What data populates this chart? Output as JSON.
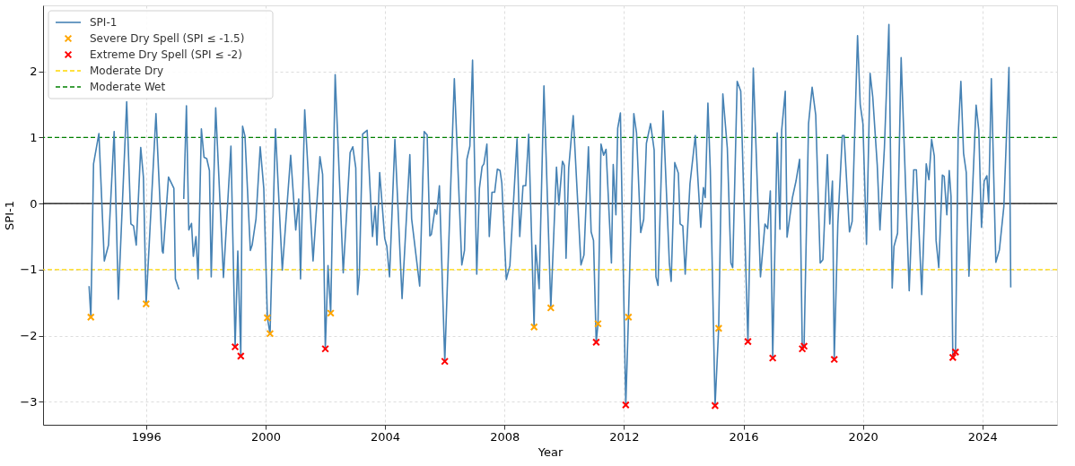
{
  "chart_data": {
    "type": "line",
    "xlabel": "Year",
    "ylabel": "SPI-1",
    "xlim": [
      1992.55,
      2026.5
    ],
    "xticks": [
      1996,
      2000,
      2004,
      2008,
      2012,
      2016,
      2020,
      2024
    ],
    "ylim": [
      -3.35,
      3.0
    ],
    "yticks": [
      -3,
      -2,
      -1,
      0,
      1,
      2
    ],
    "grid": true,
    "legend": "top left",
    "line_style": "solid",
    "series": [
      {
        "name": "SPI-1",
        "color": "#4682b4",
        "marker": "none",
        "x": [
          1994.09,
          1994.15,
          1994.24,
          1994.42,
          1994.6,
          1994.74,
          1994.93,
          1995.07,
          1995.35,
          1995.49,
          1995.58,
          1995.67,
          1995.82,
          1995.91,
          1996.0,
          1996.33,
          1996.54,
          1996.57,
          1996.75,
          1996.93,
          1996.98,
          1997.1,
          1997.17,
          1997.26,
          1997.35,
          1997.43,
          1997.52,
          1997.58,
          1997.67,
          1997.74,
          1997.85,
          1997.94,
          1998.03,
          1998.12,
          1998.18,
          1998.33,
          1998.59,
          1998.84,
          1998.98,
          1999.07,
          1999.17,
          1999.23,
          1999.31,
          1999.49,
          1999.55,
          1999.68,
          1999.82,
          1999.94,
          2000.06,
          2000.15,
          2000.33,
          2000.56,
          2000.84,
          2001.01,
          2001.11,
          2001.17,
          2001.31,
          2001.59,
          2001.82,
          2001.91,
          2002.0,
          2002.09,
          2002.18,
          2002.33,
          2002.6,
          2002.83,
          2002.92,
          2003.02,
          2003.08,
          2003.14,
          2003.25,
          2003.4,
          2003.58,
          2003.67,
          2003.73,
          2003.82,
          2003.99,
          2004.06,
          2004.15,
          2004.33,
          2004.57,
          2004.83,
          2004.89,
          2005.16,
          2005.31,
          2005.41,
          2005.5,
          2005.55,
          2005.67,
          2005.73,
          2005.82,
          2006.0,
          2006.32,
          2006.57,
          2006.66,
          2006.74,
          2006.84,
          2006.93,
          2007.07,
          2007.16,
          2007.25,
          2007.31,
          2007.41,
          2007.49,
          2007.58,
          2007.67,
          2007.76,
          2007.85,
          2007.91,
          2008.06,
          2008.18,
          2008.42,
          2008.51,
          2008.62,
          2008.71,
          2008.81,
          2008.99,
          2009.04,
          2009.16,
          2009.32,
          2009.55,
          2009.74,
          2009.82,
          2009.94,
          2010.0,
          2010.06,
          2010.15,
          2010.3,
          2010.56,
          2010.66,
          2010.81,
          2010.9,
          2010.98,
          2011.07,
          2011.13,
          2011.23,
          2011.32,
          2011.4,
          2011.58,
          2011.64,
          2011.73,
          2011.79,
          2011.88,
          2012.06,
          2012.15,
          2012.33,
          2012.42,
          2012.56,
          2012.66,
          2012.75,
          2012.89,
          2013.01,
          2013.07,
          2013.14,
          2013.31,
          2013.52,
          2013.58,
          2013.7,
          2013.82,
          2013.88,
          2013.97,
          2014.05,
          2014.21,
          2014.39,
          2014.57,
          2014.66,
          2014.72,
          2014.81,
          2014.89,
          2015.05,
          2015.17,
          2015.31,
          2015.46,
          2015.58,
          2015.64,
          2015.79,
          2015.91,
          2016.15,
          2016.33,
          2016.57,
          2016.72,
          2016.81,
          2016.9,
          2016.98,
          2017.13,
          2017.22,
          2017.28,
          2017.4,
          2017.46,
          2017.64,
          2017.76,
          2017.88,
          2017.97,
          2018.03,
          2018.18,
          2018.3,
          2018.42,
          2018.57,
          2018.66,
          2018.81,
          2018.89,
          2018.98,
          2019.04,
          2019.16,
          2019.31,
          2019.37,
          2019.55,
          2019.64,
          2019.82,
          2019.91,
          2020.0,
          2020.12,
          2020.24,
          2020.33,
          2020.48,
          2020.57,
          2020.72,
          2020.87,
          2020.98,
          2021.04,
          2021.16,
          2021.28,
          2021.55,
          2021.7,
          2021.79,
          2021.97,
          2022.12,
          2022.21,
          2022.3,
          2022.39,
          2022.45,
          2022.54,
          2022.66,
          2022.72,
          2022.81,
          2022.89,
          2022.95,
          2023.01,
          2023.1,
          2023.19,
          2023.28,
          2023.37,
          2023.46,
          2023.55,
          2023.79,
          2023.88,
          2023.97,
          2024.06,
          2024.15,
          2024.21,
          2024.3,
          2024.45,
          2024.57,
          2024.72,
          2024.89,
          2024.95
        ],
        "values": [
          -1.25,
          -1.72,
          0.6,
          1.06,
          -0.87,
          -0.63,
          1.09,
          -1.45,
          1.54,
          -0.31,
          -0.34,
          -0.63,
          0.85,
          0.4,
          -1.52,
          1.36,
          -0.72,
          -0.75,
          0.4,
          0.23,
          -1.14,
          -1.3,
          null,
          0.07,
          1.48,
          -0.4,
          -0.3,
          -0.8,
          -0.5,
          -1.14,
          1.13,
          0.7,
          0.68,
          0.5,
          -1.11,
          1.45,
          -1.12,
          0.87,
          -2.17,
          -0.72,
          -2.31,
          1.17,
          1.02,
          -0.71,
          -0.63,
          -0.23,
          0.86,
          0.23,
          -1.73,
          -1.97,
          1.13,
          -1.01,
          0.73,
          -0.4,
          0.07,
          -1.14,
          1.42,
          -0.87,
          0.71,
          0.44,
          -2.2,
          -0.94,
          -1.66,
          1.95,
          -1.05,
          0.77,
          0.86,
          0.54,
          -1.38,
          -1.07,
          1.05,
          1.11,
          -0.5,
          -0.04,
          -0.63,
          0.47,
          -0.53,
          -0.65,
          -1.11,
          0.97,
          -1.44,
          0.74,
          -0.23,
          -1.25,
          1.09,
          1.04,
          -0.49,
          -0.47,
          -0.09,
          -0.16,
          0.27,
          -2.39,
          1.89,
          -0.93,
          -0.71,
          0.67,
          0.87,
          2.17,
          -1.07,
          0.23,
          0.56,
          0.6,
          0.9,
          -0.5,
          0.17,
          0.17,
          0.52,
          0.5,
          0.31,
          -1.15,
          -0.94,
          0.98,
          -0.5,
          0.27,
          0.27,
          1.05,
          -1.87,
          -0.63,
          -1.29,
          1.78,
          -1.58,
          0.55,
          -0.02,
          0.64,
          0.58,
          -0.83,
          0.54,
          1.33,
          -0.93,
          -0.78,
          0.86,
          -0.43,
          -0.56,
          -2.1,
          -1.82,
          0.9,
          0.73,
          0.82,
          -0.9,
          0.59,
          -0.17,
          1.14,
          1.37,
          -3.05,
          -1.72,
          1.36,
          1.07,
          -0.44,
          -0.24,
          0.91,
          1.21,
          0.81,
          -1.11,
          -1.24,
          1.4,
          -0.91,
          -1.18,
          0.62,
          0.46,
          -0.31,
          -0.34,
          -1.07,
          0.3,
          1.03,
          -0.36,
          0.24,
          0.09,
          1.52,
          0.51,
          -3.06,
          -1.89,
          1.66,
          0.84,
          -0.9,
          -0.97,
          1.85,
          1.7,
          -2.09,
          2.05,
          -1.11,
          -0.31,
          -0.38,
          0.19,
          -2.34,
          1.07,
          -0.39,
          1.11,
          1.7,
          -0.51,
          0.09,
          0.34,
          0.67,
          -2.2,
          -2.16,
          1.21,
          1.76,
          1.34,
          -0.9,
          -0.85,
          0.74,
          -0.31,
          0.34,
          -2.36,
          -0.31,
          1.03,
          1.03,
          -0.43,
          -0.27,
          2.54,
          1.5,
          1.21,
          -0.62,
          1.97,
          1.61,
          0.58,
          -0.4,
          0.85,
          2.71,
          -1.28,
          -0.65,
          -0.45,
          2.21,
          -1.32,
          0.51,
          0.51,
          -1.38,
          0.6,
          0.36,
          0.97,
          0.72,
          -0.56,
          -0.97,
          0.43,
          0.41,
          -0.17,
          0.5,
          0.11,
          -2.33,
          -2.25,
          1.04,
          1.85,
          0.76,
          0.47,
          -1.1,
          1.49,
          1.11,
          -0.36,
          0.34,
          0.42,
          0.0,
          1.89,
          -0.89,
          -0.7,
          -0.04,
          2.06,
          -1.27
        ]
      },
      {
        "name": "Severe Dry Spell (SPI ≤ -1.5)",
        "type": "scatter",
        "color": "#ffa500",
        "marker": "cross",
        "x": [
          1994.15,
          1996.0,
          2000.06,
          2000.15,
          2002.18,
          2008.99,
          2009.55,
          2011.13,
          2012.15,
          2015.17
        ],
        "values": [
          -1.72,
          -1.52,
          -1.73,
          -1.97,
          -1.66,
          -1.87,
          -1.58,
          -1.82,
          -1.72,
          -1.89
        ]
      },
      {
        "name": "Extreme Dry Spell (SPI ≤ -2)",
        "type": "scatter",
        "color": "#ff0000",
        "marker": "cross",
        "x": [
          1998.98,
          1999.17,
          2002.0,
          2006.0,
          2011.07,
          2012.06,
          2015.05,
          2016.15,
          2016.98,
          2017.97,
          2018.03,
          2019.04,
          2023.01,
          2023.1
        ],
        "values": [
          -2.17,
          -2.31,
          -2.2,
          -2.39,
          -2.1,
          -3.05,
          -3.06,
          -2.09,
          -2.34,
          -2.2,
          -2.16,
          -2.36,
          -2.33,
          -2.25
        ]
      }
    ],
    "ref_lines": [
      {
        "axis": "y",
        "value": 0,
        "color": "#000000",
        "line_style": "solid"
      },
      {
        "axis": "y",
        "value": -1,
        "label": "Moderate Dry",
        "color": "#ffd700",
        "line_style": "dashed"
      },
      {
        "axis": "y",
        "value": 1,
        "label": "Moderate Wet",
        "color": "#008000",
        "line_style": "dashed"
      }
    ]
  }
}
